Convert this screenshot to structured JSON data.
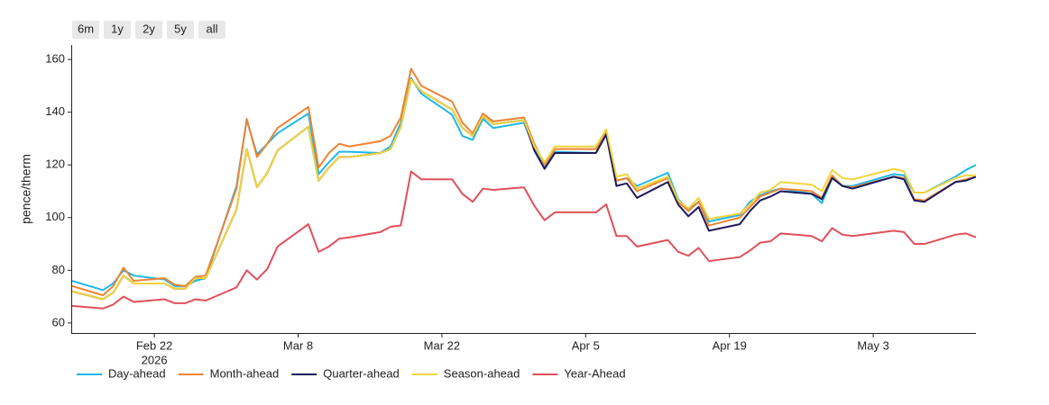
{
  "chart_data": {
    "type": "line",
    "range_buttons": [
      "6m",
      "1y",
      "2y",
      "5y",
      "all"
    ],
    "y_label": "pence/therm",
    "x_year": "2026",
    "xlim": [
      "2026-02-14",
      "2026-05-13"
    ],
    "xticks": [
      {
        "value": "2026-02-22",
        "label": "Feb 22"
      },
      {
        "value": "2026-03-08",
        "label": "Mar 8"
      },
      {
        "value": "2026-03-22",
        "label": "Mar 22"
      },
      {
        "value": "2026-04-05",
        "label": "Apr 5"
      },
      {
        "value": "2026-04-19",
        "label": "Apr 19"
      },
      {
        "value": "2026-05-03",
        "label": "May 3"
      }
    ],
    "ylim": [
      56.2,
      165.5
    ],
    "yticks": [
      60,
      80,
      100,
      120,
      140,
      160
    ],
    "x": [
      "2026-02-14",
      "2026-02-17",
      "2026-02-18",
      "2026-02-19",
      "2026-02-20",
      "2026-02-23",
      "2026-02-24",
      "2026-02-25",
      "2026-02-26",
      "2026-02-27",
      "2026-03-02",
      "2026-03-03",
      "2026-03-04",
      "2026-03-05",
      "2026-03-06",
      "2026-03-09",
      "2026-03-10",
      "2026-03-11",
      "2026-03-12",
      "2026-03-13",
      "2026-03-16",
      "2026-03-17",
      "2026-03-18",
      "2026-03-19",
      "2026-03-20",
      "2026-03-23",
      "2026-03-24",
      "2026-03-25",
      "2026-03-26",
      "2026-03-27",
      "2026-03-30",
      "2026-03-31",
      "2026-04-01",
      "2026-04-02",
      "2026-04-06",
      "2026-04-07",
      "2026-04-08",
      "2026-04-09",
      "2026-04-10",
      "2026-04-13",
      "2026-04-14",
      "2026-04-15",
      "2026-04-16",
      "2026-04-17",
      "2026-04-20",
      "2026-04-21",
      "2026-04-22",
      "2026-04-23",
      "2026-04-24",
      "2026-04-27",
      "2026-04-28",
      "2026-04-29",
      "2026-04-30",
      "2026-05-01",
      "2026-05-05",
      "2026-05-06",
      "2026-05-07",
      "2026-05-08",
      "2026-05-11",
      "2026-05-12",
      "2026-05-13"
    ],
    "series": [
      {
        "name": "Day-ahead",
        "color": "#1fb7e8",
        "values": [
          76,
          72.5,
          75,
          80,
          78,
          76.5,
          74,
          74,
          76,
          77,
          112,
          137,
          124,
          128,
          132,
          139.5,
          116.5,
          121,
          125,
          125,
          124.5,
          127,
          136,
          153,
          147,
          139,
          131,
          129.5,
          137.5,
          134,
          136,
          126,
          119,
          125,
          124.5,
          132,
          114,
          115,
          112,
          117,
          107,
          103,
          106,
          98.5,
          101,
          106,
          108.5,
          110,
          111,
          109,
          105.5,
          115,
          112,
          112,
          116.5,
          116,
          109.5,
          109.5,
          115.5,
          118,
          120
        ]
      },
      {
        "name": "Month-ahead",
        "color": "#ee8434",
        "values": [
          74,
          70.5,
          74,
          81,
          76,
          77,
          74.5,
          74,
          77.5,
          78,
          111,
          137.5,
          123,
          128,
          134,
          142,
          119,
          124.5,
          128,
          127,
          129,
          131,
          138,
          156.5,
          150,
          144,
          136,
          132,
          139.5,
          136.5,
          138,
          128,
          120,
          126,
          126,
          133,
          114,
          115,
          110,
          115,
          106,
          102.5,
          106,
          97,
          100,
          104,
          108,
          109.5,
          111,
          110,
          107.5,
          116,
          112,
          111.5,
          115.5,
          115,
          107,
          106.5,
          113.5,
          114.5,
          115.5
        ]
      },
      {
        "name": "Quarter-ahead",
        "color": "#1d1a5c",
        "values": [
          72,
          69,
          71.5,
          78,
          75,
          75,
          73,
          73,
          77,
          77,
          103,
          126,
          111.5,
          117,
          125.5,
          134.5,
          114,
          119,
          123,
          123,
          124.5,
          126,
          134.5,
          152.5,
          148,
          141,
          134,
          131,
          138.5,
          135.5,
          137,
          125.5,
          118.5,
          124.5,
          124.5,
          131.5,
          112,
          113,
          107.5,
          113.5,
          105,
          100.5,
          104,
          95,
          97.5,
          102.5,
          106.5,
          108,
          110,
          109,
          107,
          115,
          112,
          111,
          115.5,
          114.5,
          106.5,
          106,
          113.5,
          114,
          115.5
        ]
      },
      {
        "name": "Season-ahead",
        "color": "#f2d43b",
        "values": [
          72,
          69,
          71.5,
          78,
          75,
          75,
          73,
          73,
          77,
          77,
          103,
          126,
          111.5,
          117,
          125.5,
          134.5,
          114,
          119,
          123,
          123,
          124.5,
          126,
          134.5,
          152.5,
          148,
          141,
          134,
          131,
          138.5,
          135.5,
          137,
          127,
          121,
          127,
          127,
          133.5,
          115.5,
          116.5,
          111,
          115.5,
          106.5,
          103.5,
          107.5,
          99.5,
          101.5,
          105,
          109.5,
          110.5,
          113.5,
          112.5,
          110,
          118,
          115,
          114.5,
          118.5,
          117.5,
          109.5,
          109.5,
          115,
          116,
          116
        ]
      },
      {
        "name": "Year-Ahead",
        "color": "#e0505a",
        "values": [
          66.5,
          65.5,
          67,
          70,
          68,
          69,
          67.5,
          67.5,
          69,
          68.5,
          73.5,
          80,
          76.5,
          80.5,
          89,
          97.5,
          87,
          89,
          92,
          92.5,
          94.5,
          96.5,
          97,
          117.5,
          114.5,
          114.5,
          109,
          106,
          111,
          110.5,
          111.5,
          104.5,
          99,
          102,
          102,
          105,
          93,
          93,
          89,
          91.5,
          87,
          85.5,
          88.5,
          83.5,
          85,
          87.5,
          90.5,
          91,
          94,
          93,
          91,
          96,
          93.5,
          93,
          95,
          94.5,
          90,
          90,
          93.5,
          94,
          92.5
        ]
      }
    ]
  }
}
